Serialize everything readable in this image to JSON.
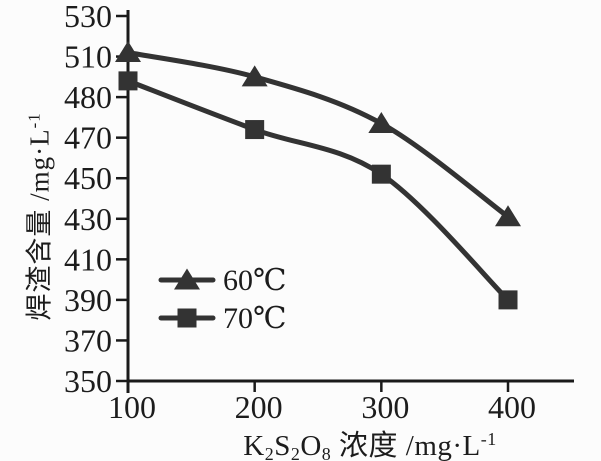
{
  "figure": {
    "background": "#fcfcfc"
  },
  "chart_data": {
    "type": "line",
    "title": "",
    "x": [
      100,
      200,
      300,
      400
    ],
    "series": [
      {
        "name": "60℃",
        "marker": "triangle",
        "values": [
          512,
          500,
          477,
          431
        ]
      },
      {
        "name": "70℃",
        "marker": "square",
        "values": [
          498,
          474,
          452,
          390
        ]
      }
    ],
    "xlabel_rich": "K_2S_2O_8 浓度 /mg·L^-1",
    "ylabel_rich": "焊渣含量 /mg·L^-1",
    "x_tick_labels": [
      "100",
      "200",
      "300",
      "400"
    ],
    "y_tick_labels": [
      "530",
      "510",
      "480",
      "470",
      "450",
      "430",
      "410",
      "390",
      "370",
      "350"
    ],
    "ylim": [
      350,
      530
    ],
    "xlim": [
      100,
      452
    ],
    "grid": false,
    "legend": {
      "position": "inside-left",
      "items": [
        {
          "label": "60℃",
          "marker": "triangle"
        },
        {
          "label": "70℃",
          "marker": "square"
        }
      ]
    },
    "colors": {
      "series": "#333333",
      "axis": "#1a1a1a",
      "text": "#1c1c1c",
      "background": "#fcfcfc"
    }
  }
}
